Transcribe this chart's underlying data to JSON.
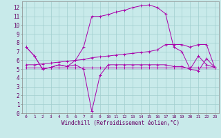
{
  "background_color": "#c8eaea",
  "grid_color": "#a0cece",
  "line_color": "#aa00aa",
  "x_ticks": [
    0,
    1,
    2,
    3,
    4,
    5,
    6,
    7,
    8,
    9,
    10,
    11,
    12,
    13,
    14,
    15,
    16,
    17,
    18,
    19,
    20,
    21,
    22,
    23
  ],
  "y_ticks": [
    0,
    1,
    2,
    3,
    4,
    5,
    6,
    7,
    8,
    9,
    10,
    11,
    12
  ],
  "xlabel": "Windchill (Refroidissement éolien,°C)",
  "xlim": [
    -0.5,
    23.5
  ],
  "ylim": [
    0,
    12.7
  ],
  "series": [
    [
      7.5,
      6.5,
      5.0,
      5.2,
      5.5,
      5.3,
      6.0,
      7.5,
      11.0,
      11.0,
      11.2,
      11.5,
      11.7,
      12.0,
      12.2,
      12.3,
      12.0,
      11.3,
      7.5,
      7.0,
      5.0,
      6.5,
      5.5,
      5.2
    ],
    [
      7.5,
      6.5,
      5.0,
      5.2,
      5.5,
      5.3,
      5.5,
      5.0,
      0.2,
      4.3,
      5.5,
      5.5,
      5.5,
      5.5,
      5.5,
      5.5,
      5.5,
      5.5,
      5.3,
      5.3,
      5.0,
      4.8,
      6.2,
      5.2
    ],
    [
      5.2,
      5.2,
      5.2,
      5.2,
      5.2,
      5.2,
      5.2,
      5.2,
      5.2,
      5.2,
      5.2,
      5.2,
      5.2,
      5.2,
      5.2,
      5.2,
      5.2,
      5.2,
      5.2,
      5.2,
      5.2,
      5.2,
      5.2,
      5.2
    ],
    [
      5.5,
      5.5,
      5.6,
      5.7,
      5.8,
      5.9,
      6.0,
      6.1,
      6.3,
      6.4,
      6.5,
      6.6,
      6.7,
      6.8,
      6.9,
      7.0,
      7.2,
      7.8,
      7.8,
      7.8,
      7.5,
      7.8,
      7.8,
      5.2
    ]
  ]
}
